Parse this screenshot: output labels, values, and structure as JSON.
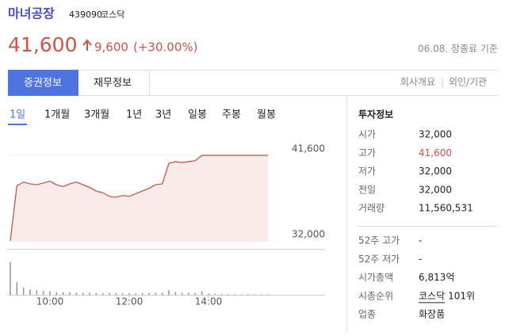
{
  "header": {
    "name": "마녀공장",
    "code": "439090",
    "market": "코스닥",
    "price": "41,600",
    "change": "9,600",
    "change_rate": "(+30.00%)",
    "date_note": "06.08. 장종료 기준"
  },
  "tabs": [
    "증권정보",
    "재무정보"
  ],
  "links": [
    "회사개요",
    "외인/기관"
  ],
  "periods": [
    "1일",
    "1개월",
    "3개월",
    "1년",
    "3년",
    "일봉",
    "주봉",
    "월봉"
  ],
  "chart_data": [
    {
      "type": "line",
      "color": "#c9574f",
      "x": [
        "09:00",
        "09:10",
        "09:20",
        "09:30",
        "09:40",
        "09:50",
        "10:00",
        "10:10",
        "10:20",
        "10:30",
        "10:40",
        "10:50",
        "11:00",
        "11:10",
        "11:20",
        "11:30",
        "11:40",
        "11:50",
        "12:00",
        "12:10",
        "12:20",
        "12:30",
        "12:40",
        "12:50",
        "13:00",
        "13:10",
        "13:20",
        "13:30",
        "13:40",
        "13:50",
        "14:00",
        "14:10",
        "14:20",
        "14:30",
        "14:40",
        "14:50",
        "15:00",
        "15:10",
        "15:20",
        "15:30"
      ],
      "values": [
        32000,
        38200,
        38600,
        38400,
        38300,
        38500,
        38700,
        38300,
        38100,
        38400,
        38600,
        38300,
        38000,
        37600,
        37400,
        37000,
        36900,
        37100,
        37000,
        37300,
        37600,
        37900,
        38300,
        38400,
        40700,
        40900,
        40800,
        40900,
        41000,
        41600,
        41600,
        41600,
        41600,
        41600,
        41600,
        41600,
        41600,
        41600,
        41600,
        41600
      ],
      "ylim": [
        31900,
        44100
      ],
      "yticks": [
        {
          "value": 41600,
          "label": "41,600"
        },
        {
          "value": 32000,
          "label": "32,000"
        }
      ],
      "xticks": [
        "10:00",
        "12:00",
        "14:00"
      ]
    },
    {
      "type": "bar",
      "color": "#999999",
      "x": [
        "09:00",
        "09:10",
        "09:20",
        "09:30",
        "09:40",
        "09:50",
        "10:00",
        "10:10",
        "10:20",
        "10:30",
        "10:40",
        "10:50",
        "11:00",
        "11:10",
        "11:20",
        "11:30",
        "11:40",
        "11:50",
        "12:00",
        "12:10",
        "12:20",
        "12:30",
        "12:40",
        "12:50",
        "13:00",
        "13:10",
        "13:20",
        "13:30",
        "13:40",
        "13:50",
        "14:00",
        "14:10",
        "14:20",
        "14:30",
        "14:40",
        "14:50",
        "15:00",
        "15:10",
        "15:20",
        "15:30"
      ],
      "values": [
        1800000,
        700000,
        400000,
        300000,
        250000,
        220000,
        200000,
        150000,
        140000,
        130000,
        120000,
        110000,
        120000,
        100000,
        90000,
        100000,
        90000,
        80000,
        90000,
        80000,
        90000,
        100000,
        110000,
        120000,
        250000,
        150000,
        120000,
        110000,
        100000,
        200000,
        60000,
        50000,
        40000,
        40000,
        30000,
        30000,
        30000,
        30000,
        30000,
        30000
      ],
      "ylim": [
        0,
        2000000
      ]
    }
  ],
  "info": {
    "title": "투자정보",
    "rows": [
      {
        "label": "시가",
        "value": "32,000"
      },
      {
        "label": "고가",
        "value": "41,600"
      },
      {
        "label": "저가",
        "value": "32,000"
      },
      {
        "label": "전일",
        "value": "32,000"
      },
      {
        "label": "거래량",
        "value": "11,560,531"
      }
    ],
    "rows2": [
      {
        "label": "52주 고가",
        "value": "-"
      },
      {
        "label": "52주 저가",
        "value": "-"
      },
      {
        "label": "시가총액",
        "value": "6,813억"
      },
      {
        "label": "시총순위",
        "value": "코스닥",
        "value2": "101위"
      },
      {
        "label": "업종",
        "value": "화장품"
      }
    ]
  }
}
